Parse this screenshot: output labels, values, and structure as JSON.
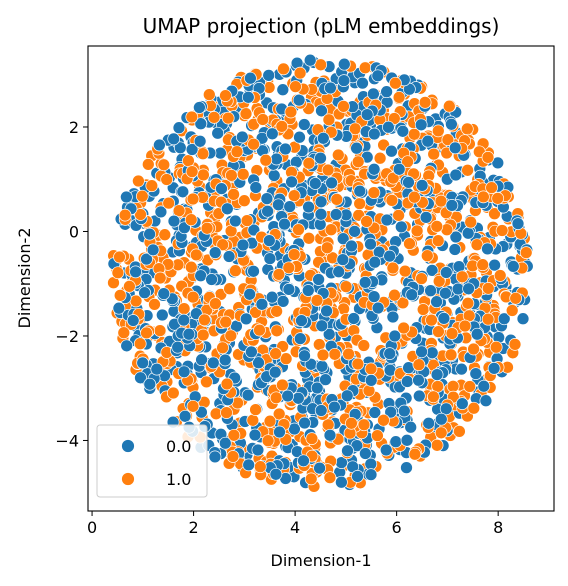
{
  "chart_data": {
    "type": "scatter",
    "title": "UMAP projection (pLM embeddings)",
    "xlabel": "Dimension-1",
    "ylabel": "Dimension-2",
    "xlim": [
      -0.08,
      9.1
    ],
    "ylim": [
      -5.35,
      3.55
    ],
    "xticks": [
      0,
      2,
      4,
      6,
      8
    ],
    "yticks": [
      -4,
      -2,
      0,
      2
    ],
    "grid": false,
    "legend_position": "bottom-left",
    "cluster": {
      "center": [
        4.5,
        -0.8
      ],
      "radius_x": 4.1,
      "radius_y": 4.1,
      "points_per_series": 1100
    },
    "series": [
      {
        "name": "0.0",
        "color": "#1f77b4"
      },
      {
        "name": "1.0",
        "color": "#ff7f0e"
      }
    ]
  }
}
